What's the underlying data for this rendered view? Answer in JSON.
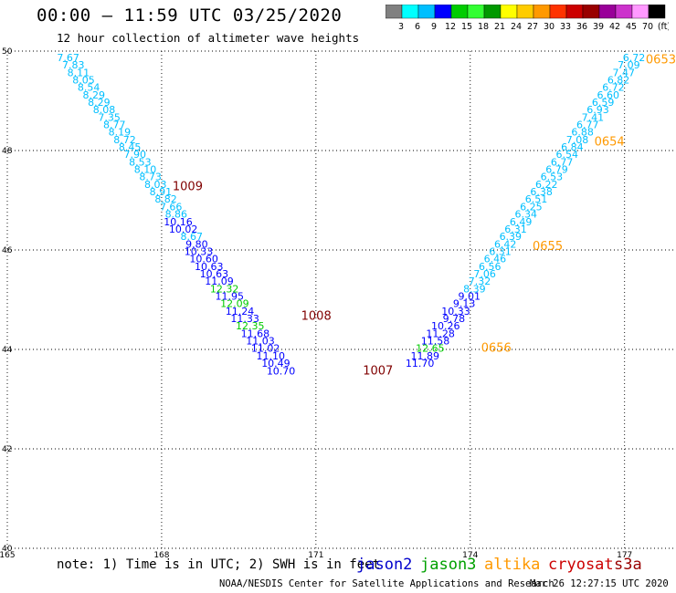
{
  "header": {
    "title": "00:00 – 11:59 UTC 03/25/2020",
    "subtitle": "12 hour collection of altimeter wave heights"
  },
  "colorbar": {
    "colors": [
      "#808080",
      "#00ffff",
      "#00bfff",
      "#0000ff",
      "#00cc00",
      "#33ff33",
      "#009900",
      "#ffff00",
      "#ffcc00",
      "#ff9900",
      "#ff3300",
      "#cc0000",
      "#990000",
      "#990099",
      "#cc33cc",
      "#ff99ff",
      "#000000"
    ],
    "labels": [
      "3",
      "6",
      "9",
      "12",
      "15",
      "18",
      "21",
      "24",
      "27",
      "30",
      "33",
      "36",
      "39",
      "42",
      "45",
      "70",
      "(ft)"
    ]
  },
  "footer": {
    "note": "note: 1) Time is in UTC; 2) SWH is in feet",
    "satellites": [
      "jason2",
      "jason3",
      "altika",
      "cryosat",
      "s3a"
    ],
    "credit": "NOAA/NESDIS Center for Satellite Applications and Research",
    "timestamp": "Mar 26 12:27:15 UTC 2020"
  },
  "chart_data": {
    "type": "scatter",
    "xlim": [
      165,
      178
    ],
    "ylim": [
      40,
      50
    ],
    "x_ticks": [
      "165",
      "168",
      "171",
      "174",
      "177"
    ],
    "y_ticks": [
      "40",
      "42",
      "44",
      "46",
      "48",
      "50"
    ],
    "grid": true,
    "track1": [
      {
        "lon": 166.4,
        "lat": 49.8,
        "v": "7.67"
      },
      {
        "lon": 166.5,
        "lat": 49.65,
        "v": "7.83"
      },
      {
        "lon": 166.6,
        "lat": 49.5,
        "v": "8.11"
      },
      {
        "lon": 166.7,
        "lat": 49.35,
        "v": "8.05"
      },
      {
        "lon": 166.8,
        "lat": 49.2,
        "v": "8.54"
      },
      {
        "lon": 166.9,
        "lat": 49.05,
        "v": "8.29"
      },
      {
        "lon": 167.0,
        "lat": 48.9,
        "v": "8.29"
      },
      {
        "lon": 167.1,
        "lat": 48.75,
        "v": "8.08"
      },
      {
        "lon": 167.2,
        "lat": 48.6,
        "v": "7.35"
      },
      {
        "lon": 167.3,
        "lat": 48.45,
        "v": "8.77"
      },
      {
        "lon": 167.4,
        "lat": 48.3,
        "v": "8.19"
      },
      {
        "lon": 167.5,
        "lat": 48.15,
        "v": "8.72"
      },
      {
        "lon": 167.6,
        "lat": 48.0,
        "v": "8.45"
      },
      {
        "lon": 167.7,
        "lat": 47.85,
        "v": "7.90"
      },
      {
        "lon": 167.8,
        "lat": 47.7,
        "v": "8.53"
      },
      {
        "lon": 167.9,
        "lat": 47.55,
        "v": "8.10"
      },
      {
        "lon": 168.0,
        "lat": 47.4,
        "v": "8.73"
      },
      {
        "lon": 168.1,
        "lat": 47.25,
        "v": "8.03"
      },
      {
        "lon": 168.2,
        "lat": 47.1,
        "v": "8.91"
      },
      {
        "lon": 168.3,
        "lat": 46.95,
        "v": "8.82"
      },
      {
        "lon": 168.4,
        "lat": 46.8,
        "v": "7.66"
      },
      {
        "lon": 168.5,
        "lat": 46.65,
        "v": "8.86"
      },
      {
        "lon": 168.6,
        "lat": 46.5,
        "v": "10.16"
      },
      {
        "lon": 168.7,
        "lat": 46.35,
        "v": "10.02"
      },
      {
        "lon": 168.8,
        "lat": 46.2,
        "v": "8.67"
      },
      {
        "lon": 168.9,
        "lat": 46.05,
        "v": "9.80"
      },
      {
        "lon": 169.0,
        "lat": 45.9,
        "v": "10.33"
      },
      {
        "lon": 169.1,
        "lat": 45.75,
        "v": "10.60"
      },
      {
        "lon": 169.2,
        "lat": 45.6,
        "v": "10.63"
      },
      {
        "lon": 169.3,
        "lat": 45.45,
        "v": "10.63"
      },
      {
        "lon": 169.4,
        "lat": 45.3,
        "v": "11.09"
      },
      {
        "lon": 169.5,
        "lat": 45.15,
        "v": "12.32"
      },
      {
        "lon": 169.6,
        "lat": 45.0,
        "v": "11.95"
      },
      {
        "lon": 169.7,
        "lat": 44.85,
        "v": "12.09"
      },
      {
        "lon": 169.8,
        "lat": 44.7,
        "v": "11.24"
      },
      {
        "lon": 169.9,
        "lat": 44.55,
        "v": "11.33"
      },
      {
        "lon": 170.0,
        "lat": 44.4,
        "v": "12.35"
      },
      {
        "lon": 170.1,
        "lat": 44.25,
        "v": "11.68"
      },
      {
        "lon": 170.2,
        "lat": 44.1,
        "v": "11.03"
      },
      {
        "lon": 170.3,
        "lat": 43.95,
        "v": "11.02"
      },
      {
        "lon": 170.4,
        "lat": 43.8,
        "v": "11.10"
      },
      {
        "lon": 170.5,
        "lat": 43.65,
        "v": "10.49"
      },
      {
        "lon": 170.6,
        "lat": 43.5,
        "v": "10.70"
      }
    ],
    "track2": [
      {
        "lon": 177.4,
        "lat": 49.8,
        "v": "6.72"
      },
      {
        "lon": 177.3,
        "lat": 49.65,
        "v": "7.09"
      },
      {
        "lon": 177.2,
        "lat": 49.5,
        "v": "7.47"
      },
      {
        "lon": 177.1,
        "lat": 49.35,
        "v": "6.82"
      },
      {
        "lon": 177.0,
        "lat": 49.2,
        "v": "6.72"
      },
      {
        "lon": 176.9,
        "lat": 49.05,
        "v": "6.60"
      },
      {
        "lon": 176.8,
        "lat": 48.9,
        "v": "6.59"
      },
      {
        "lon": 176.7,
        "lat": 48.75,
        "v": "6.93"
      },
      {
        "lon": 176.6,
        "lat": 48.6,
        "v": "7.41"
      },
      {
        "lon": 176.5,
        "lat": 48.45,
        "v": "6.77"
      },
      {
        "lon": 176.4,
        "lat": 48.3,
        "v": "6.88"
      },
      {
        "lon": 176.3,
        "lat": 48.15,
        "v": "7.08"
      },
      {
        "lon": 176.2,
        "lat": 48.0,
        "v": "6.84"
      },
      {
        "lon": 176.1,
        "lat": 47.85,
        "v": "6.54"
      },
      {
        "lon": 176.0,
        "lat": 47.7,
        "v": "6.77"
      },
      {
        "lon": 175.9,
        "lat": 47.55,
        "v": "6.79"
      },
      {
        "lon": 175.8,
        "lat": 47.4,
        "v": "6.53"
      },
      {
        "lon": 175.7,
        "lat": 47.25,
        "v": "6.22"
      },
      {
        "lon": 175.6,
        "lat": 47.1,
        "v": "6.38"
      },
      {
        "lon": 175.5,
        "lat": 46.95,
        "v": "6.51"
      },
      {
        "lon": 175.4,
        "lat": 46.8,
        "v": "6.25"
      },
      {
        "lon": 175.3,
        "lat": 46.65,
        "v": "6.34"
      },
      {
        "lon": 175.2,
        "lat": 46.5,
        "v": "6.49"
      },
      {
        "lon": 175.1,
        "lat": 46.35,
        "v": "6.31"
      },
      {
        "lon": 175.0,
        "lat": 46.2,
        "v": "6.39"
      },
      {
        "lon": 174.9,
        "lat": 46.05,
        "v": "6.42"
      },
      {
        "lon": 174.8,
        "lat": 45.9,
        "v": "6.31"
      },
      {
        "lon": 174.7,
        "lat": 45.75,
        "v": "6.46"
      },
      {
        "lon": 174.6,
        "lat": 45.6,
        "v": "6.56"
      },
      {
        "lon": 174.5,
        "lat": 45.45,
        "v": "7.06"
      },
      {
        "lon": 174.4,
        "lat": 45.3,
        "v": "7.32"
      },
      {
        "lon": 174.3,
        "lat": 45.15,
        "v": "8.39"
      },
      {
        "lon": 174.2,
        "lat": 45.0,
        "v": "9.01"
      },
      {
        "lon": 174.1,
        "lat": 44.85,
        "v": "9.13"
      },
      {
        "lon": 174.0,
        "lat": 44.7,
        "v": "10.33"
      },
      {
        "lon": 173.9,
        "lat": 44.55,
        "v": "9.78"
      },
      {
        "lon": 173.8,
        "lat": 44.4,
        "v": "10.26"
      },
      {
        "lon": 173.7,
        "lat": 44.25,
        "v": "11.28"
      },
      {
        "lon": 173.6,
        "lat": 44.1,
        "v": "11.58"
      },
      {
        "lon": 173.5,
        "lat": 43.95,
        "v": "12.65"
      },
      {
        "lon": 173.4,
        "lat": 43.8,
        "v": "11.89"
      },
      {
        "lon": 173.3,
        "lat": 43.65,
        "v": "11.70"
      }
    ],
    "time_labels": [
      {
        "lon": 168.8,
        "lat": 47.2,
        "v": "1009"
      },
      {
        "lon": 171.3,
        "lat": 44.6,
        "v": "1008"
      },
      {
        "lon": 172.5,
        "lat": 43.5,
        "v": "1007"
      },
      {
        "lon": 178.0,
        "lat": 49.75,
        "v": "0653"
      },
      {
        "lon": 177.0,
        "lat": 48.1,
        "v": "0654"
      },
      {
        "lon": 175.8,
        "lat": 46.0,
        "v": "0655"
      },
      {
        "lon": 174.8,
        "lat": 43.95,
        "v": "0656"
      }
    ]
  }
}
